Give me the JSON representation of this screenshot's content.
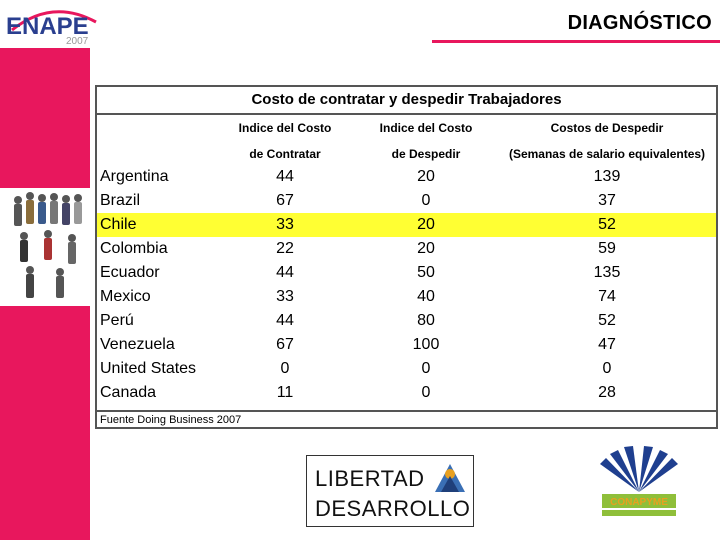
{
  "header": {
    "title": "DIAGNÓSTICO",
    "logo_text": "ENAPE",
    "logo_year": "2007"
  },
  "table": {
    "title": "Costo de contratar y despedir Trabajadores",
    "headers": [
      {
        "line1": "Indice del Costo",
        "line2": "de Contratar"
      },
      {
        "line1": "Indice del Costo",
        "line2": "de Despedir"
      },
      {
        "line1": "Costos de Despedir",
        "line2": "(Semanas de salario equivalentes)"
      }
    ],
    "rows": [
      {
        "country": "Argentina",
        "contratar": "44",
        "despedir": "20",
        "costos": "139"
      },
      {
        "country": "Brazil",
        "contratar": "67",
        "despedir": "0",
        "costos": "37"
      },
      {
        "country": "Chile",
        "contratar": "33",
        "despedir": "20",
        "costos": "52"
      },
      {
        "country": "Colombia",
        "contratar": "22",
        "despedir": "20",
        "costos": "59"
      },
      {
        "country": "Ecuador",
        "contratar": "44",
        "despedir": "50",
        "costos": "135"
      },
      {
        "country": "Mexico",
        "contratar": "33",
        "despedir": "40",
        "costos": "74"
      },
      {
        "country": "Perú",
        "contratar": "44",
        "despedir": "80",
        "costos": "52"
      },
      {
        "country": "Venezuela",
        "contratar": "67",
        "despedir": "100",
        "costos": "47"
      },
      {
        "country": "United States",
        "contratar": "0",
        "despedir": "0",
        "costos": "0"
      },
      {
        "country": "Canada",
        "contratar": "11",
        "despedir": "0",
        "costos": "28"
      }
    ],
    "highlight_row": "Chile",
    "source": "Fuente Doing Business 2007"
  },
  "logos": {
    "libertad_line1": "LIBERTAD",
    "libertad_line2": "DESARROLLO",
    "conapyme": "CONAPYME"
  },
  "colors": {
    "accent": "#e8175d",
    "highlight": "#ffff33"
  }
}
